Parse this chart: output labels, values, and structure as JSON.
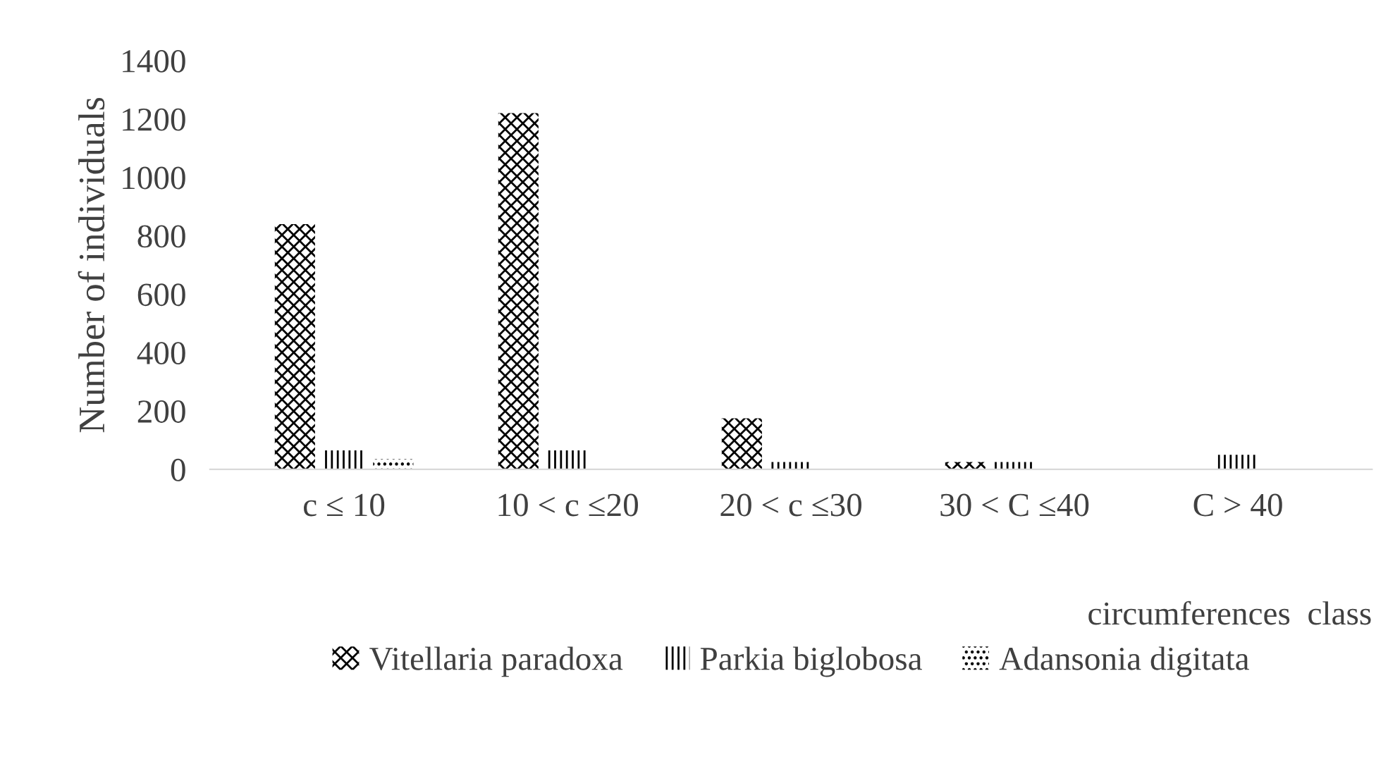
{
  "chart_data": {
    "type": "bar",
    "xlabel": "circumferences  class",
    "ylabel": "Number of individuals",
    "categories": [
      "c ≤ 10",
      "10 < c ≤20",
      "20 < c ≤30",
      "30 < C ≤40",
      "C > 40"
    ],
    "series": [
      {
        "name": "Vitellaria paradoxa",
        "color": "#000000",
        "values": [
          840,
          1220,
          175,
          25,
          0
        ]
      },
      {
        "name": "Parkia biglobosa",
        "color": "#000000",
        "values": [
          65,
          65,
          25,
          25,
          50
        ]
      },
      {
        "name": "Adansonia digitata",
        "color": "#000000",
        "values": [
          35,
          0,
          0,
          0,
          0
        ]
      }
    ],
    "ylim": [
      0,
      1400
    ],
    "yticks": [
      0,
      200,
      400,
      600,
      800,
      1000,
      1200,
      1400
    ],
    "grid": false,
    "legend": "bottom"
  }
}
